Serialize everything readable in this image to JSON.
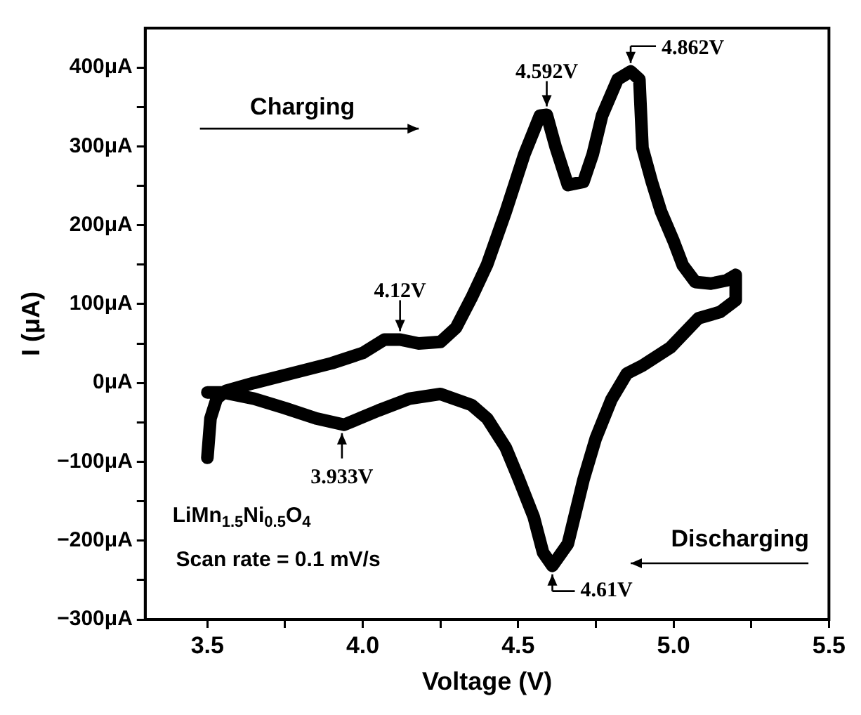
{
  "chart_data": {
    "type": "line",
    "xlabel": "Voltage (V)",
    "ylabel": "I (μA)",
    "xlim": [
      3.3,
      5.5
    ],
    "xticks": [
      {
        "value": 3.5,
        "label": "3.5"
      },
      {
        "value": 3.75,
        "label": null
      },
      {
        "value": 4,
        "label": "4.0"
      },
      {
        "value": 4.25,
        "label": null
      },
      {
        "value": 4.5,
        "label": "4.5"
      },
      {
        "value": 4.75,
        "label": null
      },
      {
        "value": 5,
        "label": "5.0"
      },
      {
        "value": 5.25,
        "label": null
      },
      {
        "value": 5.5,
        "label": "5.5"
      }
    ],
    "ylim": [
      -300,
      450
    ],
    "yticks": [
      {
        "value": -300,
        "label": "−300μA"
      },
      {
        "value": -250,
        "label": null
      },
      {
        "value": -200,
        "label": "−200μA"
      },
      {
        "value": -150,
        "label": null
      },
      {
        "value": -100,
        "label": "−100μA"
      },
      {
        "value": -50,
        "label": null
      },
      {
        "value": 0,
        "label": "0μA"
      },
      {
        "value": 50,
        "label": null
      },
      {
        "value": 100,
        "label": "100μA"
      },
      {
        "value": 150,
        "label": null
      },
      {
        "value": 200,
        "label": "200μA"
      },
      {
        "value": 250,
        "label": null
      },
      {
        "value": 300,
        "label": "300μA"
      },
      {
        "value": 350,
        "label": null
      },
      {
        "value": 400,
        "label": "400μA"
      }
    ],
    "grid": false,
    "legend": false,
    "marker": "none",
    "line_style": "solid",
    "series": [
      {
        "color": "#000000",
        "x": [
          3.5,
          3.51,
          3.53,
          3.56,
          3.65,
          3.8,
          3.9,
          4.0,
          4.07,
          4.12,
          4.18,
          4.25,
          4.3,
          4.35,
          4.4,
          4.46,
          4.52,
          4.57,
          4.592,
          4.62,
          4.66,
          4.71,
          4.74,
          4.77,
          4.82,
          4.862,
          4.89,
          4.9,
          4.93,
          4.96,
          5.0,
          5.03,
          5.07,
          5.12,
          5.17,
          5.2,
          5.2,
          5.15,
          5.08,
          4.99,
          4.9,
          4.85,
          4.8,
          4.75,
          4.71,
          4.66,
          4.61,
          4.58,
          4.55,
          4.5,
          4.46,
          4.4,
          4.35,
          4.25,
          4.15,
          4.05,
          3.94,
          3.85,
          3.75,
          3.65,
          3.55,
          3.5
        ],
        "values": [
          -95,
          -45,
          -20,
          -10,
          0,
          15,
          25,
          38,
          55,
          55,
          50,
          52,
          70,
          108,
          150,
          217,
          290,
          339,
          340,
          300,
          251,
          255,
          290,
          339,
          385,
          395,
          385,
          298,
          255,
          217,
          180,
          149,
          128,
          126,
          130,
          137,
          105,
          90,
          82,
          45,
          22,
          12,
          -21,
          -70,
          -123,
          -204,
          -232,
          -215,
          -170,
          -120,
          -82,
          -45,
          -28,
          -14,
          -20,
          -35,
          -53,
          -45,
          -32,
          -20,
          -12,
          -12
        ]
      }
    ],
    "annotations": [
      {
        "text": "4.12V",
        "x": 4.12,
        "y": 55
      },
      {
        "text": "4.592V",
        "x": 4.592,
        "y": 340
      },
      {
        "text": "4.862V",
        "x": 4.862,
        "y": 395
      },
      {
        "text": "3.933V",
        "x": 3.933,
        "y": -53
      },
      {
        "text": "4.61V",
        "x": 4.61,
        "y": -232
      },
      "Charging",
      "Discharging",
      "LiMn$_{1.5}$Ni$_{0.5}$O$_{4}$",
      "Scan rate = 0.1 mV/s"
    ]
  }
}
